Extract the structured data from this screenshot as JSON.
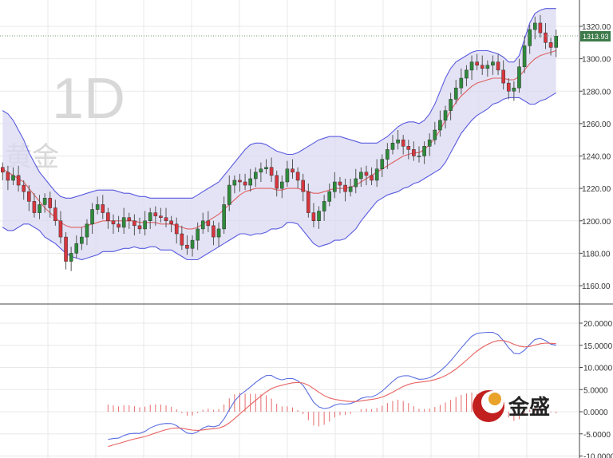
{
  "watermark": {
    "timeframe": "1D",
    "symbol": "黄金"
  },
  "logo": {
    "text": "金盛"
  },
  "last_price_label": "1313.93",
  "colors": {
    "up": "#2e8b3a",
    "down": "#d9363e",
    "band_fill": "#d9d9f2",
    "band_line": "#5a5ae0",
    "mid_line": "#e06060",
    "macd_line": "#5a6ee0",
    "signal_line": "#e86060",
    "hist_pos": "#e05050",
    "grid": "#e8e8e8",
    "logo_red": "#c21f1f"
  },
  "chart_data": [
    {
      "type": "candlestick",
      "title": "",
      "ylim": [
        1150,
        1330
      ],
      "yticks": [
        "1160.00",
        "1180.00",
        "1200.00",
        "1220.00",
        "1240.00",
        "1260.00",
        "1280.00",
        "1300.00",
        "1320.00"
      ],
      "last_price": 1313.93,
      "close": [
        1230,
        1225,
        1228,
        1222,
        1218,
        1212,
        1205,
        1210,
        1214,
        1208,
        1200,
        1190,
        1175,
        1180,
        1186,
        1190,
        1198,
        1207,
        1210,
        1205,
        1200,
        1198,
        1196,
        1202,
        1200,
        1197,
        1195,
        1200,
        1205,
        1203,
        1202,
        1200,
        1198,
        1192,
        1185,
        1183,
        1188,
        1195,
        1200,
        1197,
        1190,
        1195,
        1210,
        1222,
        1225,
        1224,
        1222,
        1226,
        1230,
        1232,
        1233,
        1228,
        1220,
        1224,
        1232,
        1230,
        1225,
        1218,
        1205,
        1200,
        1206,
        1212,
        1218,
        1224,
        1222,
        1218,
        1221,
        1226,
        1230,
        1228,
        1225,
        1232,
        1238,
        1244,
        1248,
        1250,
        1246,
        1244,
        1240,
        1240,
        1246,
        1250,
        1256,
        1262,
        1268,
        1275,
        1282,
        1288,
        1293,
        1298,
        1296,
        1294,
        1296,
        1298,
        1293,
        1285,
        1280,
        1282,
        1295,
        1308,
        1318,
        1322,
        1316,
        1310,
        1307,
        1314
      ],
      "bollinger": {
        "upper": [
          1268,
          1266,
          1262,
          1256,
          1250,
          1242,
          1236,
          1230,
          1226,
          1222,
          1218,
          1215,
          1214,
          1214,
          1215,
          1216,
          1217,
          1218,
          1219,
          1219,
          1219,
          1219,
          1218,
          1217,
          1217,
          1216,
          1215,
          1215,
          1214,
          1214,
          1214,
          1214,
          1214,
          1214,
          1214,
          1214,
          1214,
          1216,
          1218,
          1220,
          1222,
          1224,
          1228,
          1232,
          1236,
          1240,
          1244,
          1247,
          1248,
          1248,
          1247,
          1245,
          1243,
          1242,
          1241,
          1241,
          1242,
          1244,
          1246,
          1248,
          1250,
          1251,
          1252,
          1252,
          1252,
          1251,
          1250,
          1249,
          1248,
          1248,
          1248,
          1248,
          1250,
          1252,
          1255,
          1258,
          1260,
          1261,
          1261,
          1260,
          1262,
          1266,
          1272,
          1280,
          1288,
          1294,
          1298,
          1300,
          1302,
          1304,
          1305,
          1305,
          1305,
          1304,
          1303,
          1301,
          1298,
          1298,
          1302,
          1312,
          1322,
          1328,
          1330,
          1331,
          1331,
          1331
        ],
        "middle": [
          1232,
          1230,
          1228,
          1226,
          1224,
          1220,
          1216,
          1212,
          1208,
          1205,
          1202,
          1199,
          1197,
          1196,
          1196,
          1196,
          1197,
          1198,
          1199,
          1200,
          1200,
          1200,
          1200,
          1200,
          1200,
          1200,
          1199,
          1199,
          1199,
          1199,
          1198,
          1198,
          1198,
          1197,
          1196,
          1195,
          1195,
          1196,
          1198,
          1200,
          1202,
          1204,
          1207,
          1210,
          1213,
          1216,
          1218,
          1219,
          1220,
          1220,
          1220,
          1220,
          1219,
          1219,
          1220,
          1220,
          1220,
          1219,
          1218,
          1217,
          1217,
          1218,
          1219,
          1220,
          1220,
          1220,
          1221,
          1222,
          1224,
          1226,
          1228,
          1230,
          1232,
          1234,
          1236,
          1238,
          1240,
          1241,
          1242,
          1242,
          1244,
          1247,
          1251,
          1256,
          1262,
          1268,
          1273,
          1277,
          1280,
          1283,
          1285,
          1286,
          1287,
          1288,
          1288,
          1288,
          1287,
          1287,
          1289,
          1293,
          1297,
          1300,
          1302,
          1303,
          1304,
          1305
        ],
        "lower": [
          1196,
          1194,
          1194,
          1196,
          1198,
          1198,
          1196,
          1194,
          1190,
          1188,
          1186,
          1183,
          1180,
          1178,
          1177,
          1176,
          1177,
          1178,
          1179,
          1181,
          1181,
          1181,
          1182,
          1183,
          1183,
          1184,
          1183,
          1183,
          1184,
          1184,
          1182,
          1182,
          1182,
          1180,
          1178,
          1176,
          1176,
          1176,
          1178,
          1180,
          1182,
          1184,
          1186,
          1188,
          1190,
          1192,
          1192,
          1191,
          1192,
          1192,
          1193,
          1195,
          1195,
          1196,
          1199,
          1199,
          1198,
          1194,
          1190,
          1186,
          1184,
          1185,
          1186,
          1188,
          1188,
          1189,
          1192,
          1195,
          1200,
          1204,
          1208,
          1212,
          1214,
          1216,
          1217,
          1218,
          1220,
          1221,
          1223,
          1224,
          1226,
          1228,
          1230,
          1232,
          1236,
          1242,
          1248,
          1254,
          1258,
          1262,
          1265,
          1267,
          1269,
          1272,
          1273,
          1275,
          1276,
          1276,
          1276,
          1274,
          1272,
          1272,
          1274,
          1275,
          1277,
          1279
        ]
      }
    },
    {
      "type": "macd",
      "title": "",
      "ylim": [
        -10,
        20
      ],
      "yticks": [
        "20.0000",
        "15.0000",
        "10.0000",
        "5.0000",
        "0.0000",
        "-5.0000",
        "-10.0000"
      ]
    }
  ]
}
